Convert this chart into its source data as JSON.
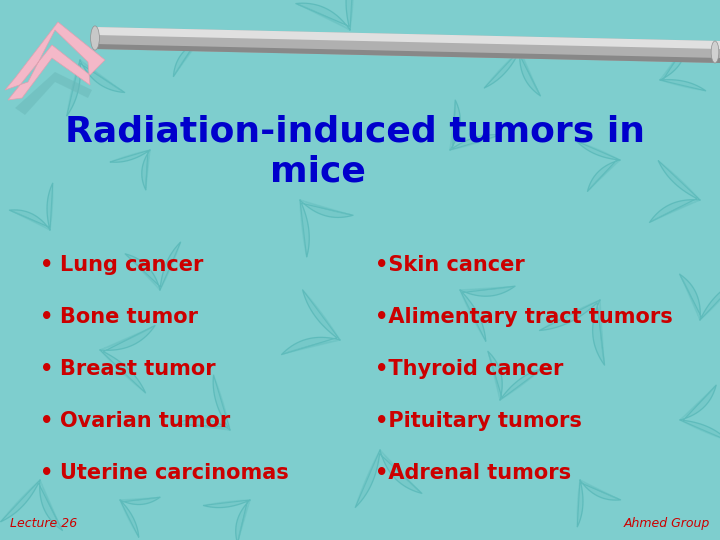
{
  "title_line1": "Radiation-induced tumors in",
  "title_line2": "mice",
  "title_color": "#0000cc",
  "bg_color": "#7ecece",
  "deco_color": "#5bbcbc",
  "deco_fill": "#6ecece",
  "left_bullets": [
    "Lung cancer",
    "Bone tumor",
    "Breast tumor",
    "Ovarian tumor",
    "Uterine carcinomas"
  ],
  "right_bullets": [
    "Skin cancer",
    "Alimentary tract tumors",
    "Thyroid cancer",
    "Pituitary tumors",
    "Adrenal tumors"
  ],
  "bullet_color": "#cc0000",
  "footer_left": "Lecture 26",
  "footer_right": "Ahmed Group",
  "footer_color": "#cc0000",
  "hook_color": "#f4b8c8",
  "rod_color": "#b0b0b0",
  "rod_highlight": "#e0e0e0",
  "rod_shadow": "#888888"
}
